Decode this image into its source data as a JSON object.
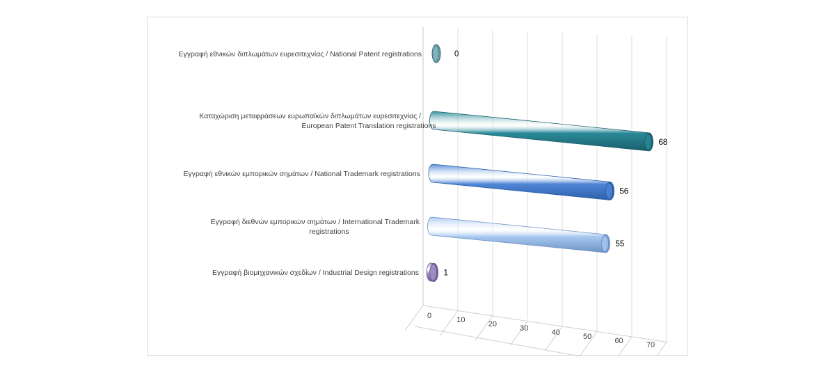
{
  "chart_data": {
    "type": "bar",
    "orientation": "horizontal",
    "style": "3d-cylinder",
    "categories": [
      [
        "Εγγραφή εθνικών  διπλωμάτων ευρεσιτεχνίας  / National Patent registrations"
      ],
      [
        "Καταχώριση  μεταφράσεων ευρωπαϊκών  διπλωμάτων ευρεσιτεχνίας  /",
        "European Patent Translation registrations"
      ],
      [
        "Εγγραφή εθνικών  εμπορικών σημάτων  / National Trademark registrations"
      ],
      [
        "Εγγραφή διεθνών  εμπορικών σημάτων  / International Trademark",
        "registrations"
      ],
      [
        "Εγγραφή βιομηχανικών  σχεδίων  / Industrial Design registrations"
      ]
    ],
    "values": [
      0,
      68,
      56,
      55,
      1
    ],
    "data_labels": [
      "0",
      "68",
      "56",
      "55",
      "1"
    ],
    "xlim": [
      0,
      70
    ],
    "ticks": [
      "0",
      "10",
      "20",
      "30",
      "40",
      "50",
      "60",
      "70"
    ],
    "grid": true,
    "legend": "none",
    "colors": [
      "#5f97a6",
      "#2a8a99",
      "#4f86d6",
      "#a7c8f0",
      "#a694c8"
    ],
    "edge_colors": [
      "#3f6f7d",
      "#1a5f6b",
      "#2d5fa8",
      "#6d93c2",
      "#6f5f95"
    ]
  }
}
